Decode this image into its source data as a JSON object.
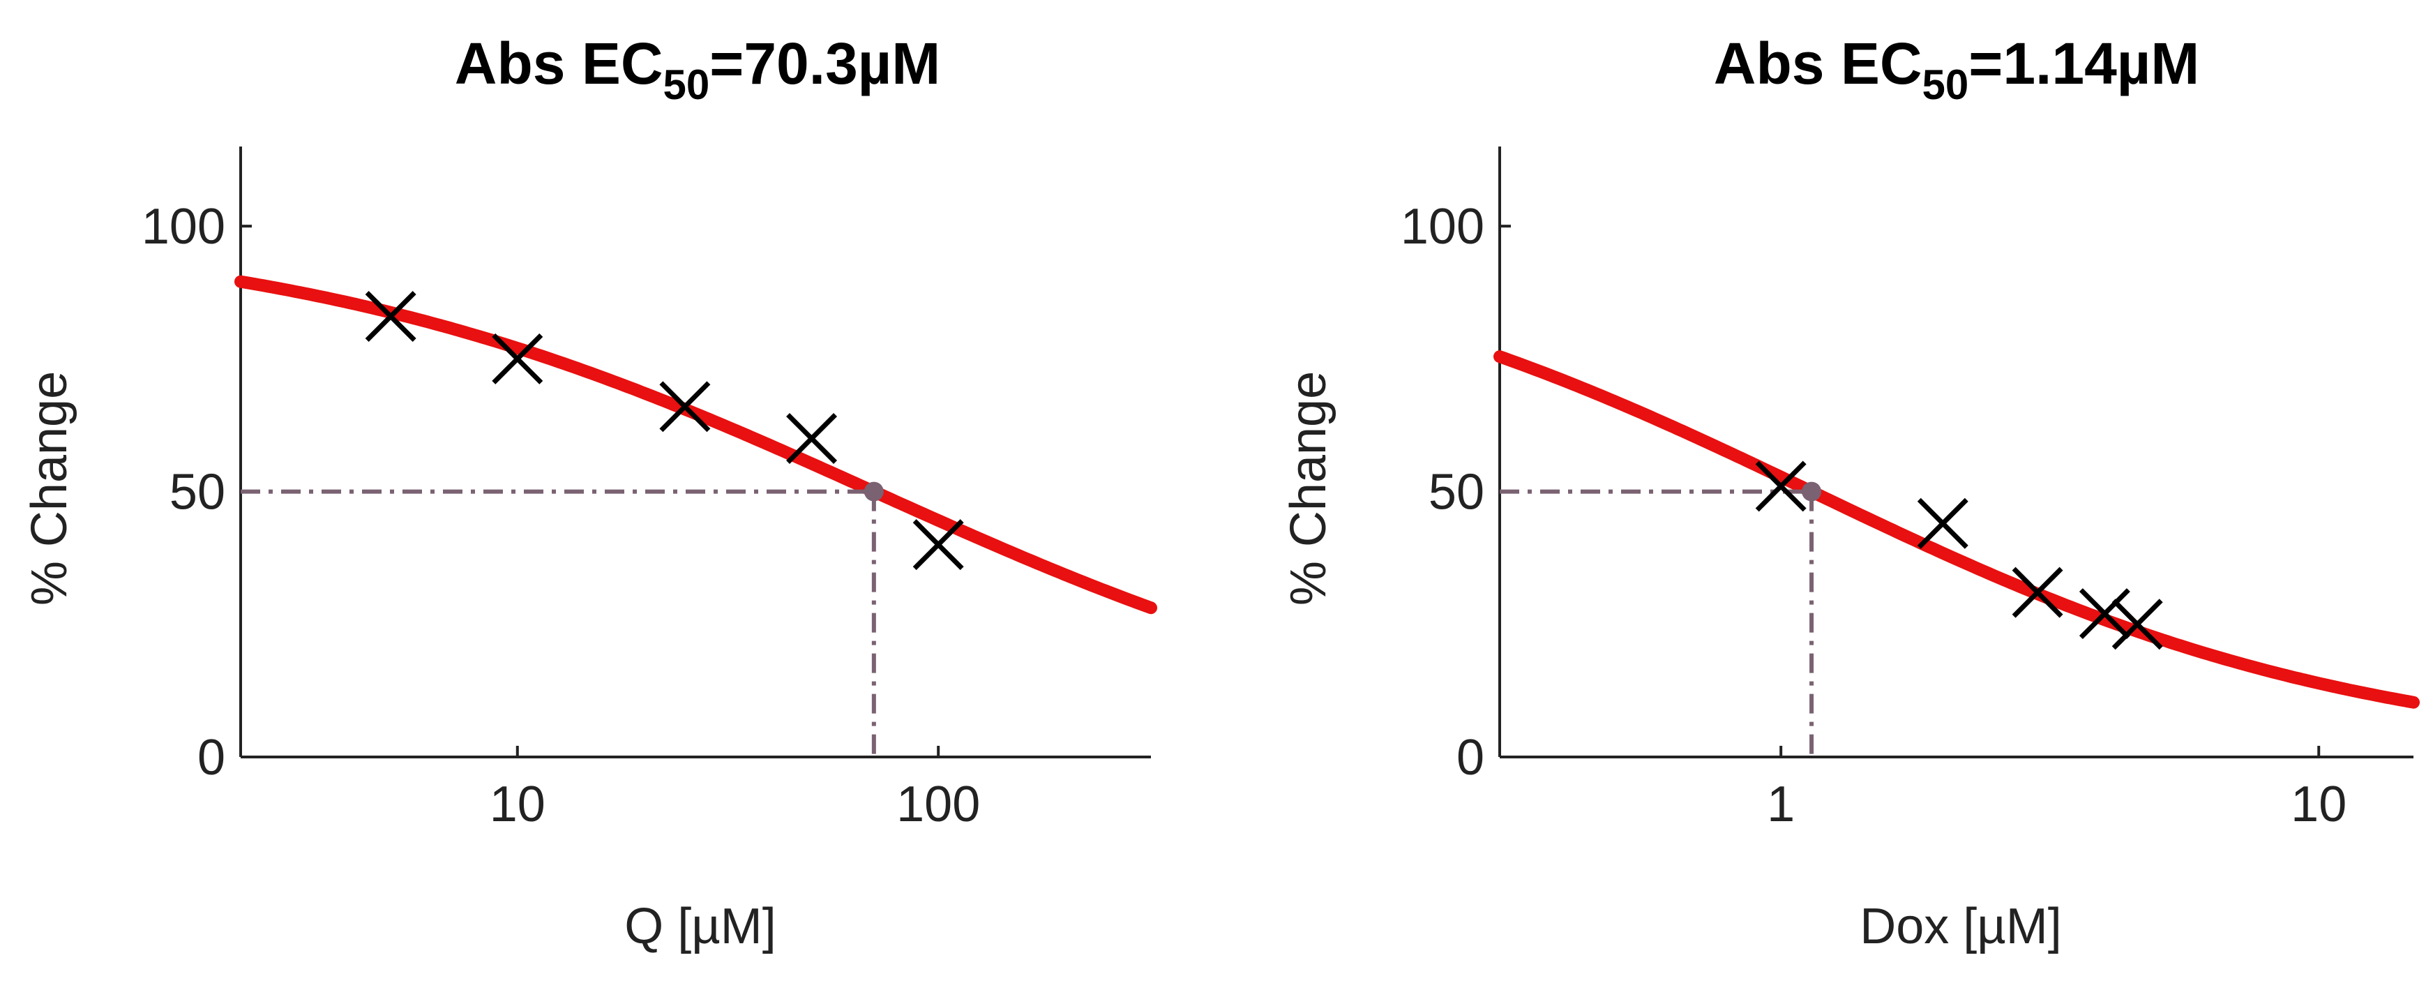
{
  "chart_data": [
    {
      "type": "scatter",
      "title": "Abs EC",
      "title_subscript": "50",
      "title_suffix": "=70.3µM",
      "xlabel": "Q [µM]",
      "ylabel": "% Change",
      "xscale": "log",
      "xlim": [
        2.2,
        320
      ],
      "ylim": [
        0,
        115
      ],
      "xticks": [
        10,
        100
      ],
      "xtick_labels": [
        "10",
        "100"
      ],
      "yticks": [
        0,
        50,
        100
      ],
      "ytick_labels": [
        "0",
        "50",
        "100"
      ],
      "grid": false,
      "legend": "none",
      "ec50": 70.3,
      "ec50_response": 50,
      "points": [
        {
          "x": 5,
          "y": 83
        },
        {
          "x": 10,
          "y": 75
        },
        {
          "x": 25,
          "y": 66
        },
        {
          "x": 50,
          "y": 60
        },
        {
          "x": 100,
          "y": 40
        }
      ],
      "fit_curve": {
        "top": 100,
        "bottom": 0,
        "ec50": 70.3,
        "hill": 0.62
      },
      "colors": {
        "fit": "#e81010",
        "guide": "#7a6272",
        "points": "#000000"
      }
    },
    {
      "type": "scatter",
      "title": "Abs EC",
      "title_subscript": "50",
      "title_suffix": "=1.14µM",
      "xlabel": "Dox [µM]",
      "ylabel": "% Change",
      "xscale": "log",
      "xlim": [
        0.3,
        15
      ],
      "ylim": [
        0,
        115
      ],
      "xticks": [
        1,
        10
      ],
      "xtick_labels": [
        "1",
        "10"
      ],
      "yticks": [
        0,
        50,
        100
      ],
      "ytick_labels": [
        "0",
        "50",
        "100"
      ],
      "grid": false,
      "legend": "none",
      "ec50": 1.14,
      "ec50_response": 50,
      "points": [
        {
          "x": 1,
          "y": 51
        },
        {
          "x": 2,
          "y": 44
        },
        {
          "x": 3,
          "y": 31
        },
        {
          "x": 4,
          "y": 27
        },
        {
          "x": 4.6,
          "y": 25
        }
      ],
      "fit_curve": {
        "top": 100,
        "bottom": 0,
        "ec50": 1.14,
        "hill": 0.84
      },
      "colors": {
        "fit": "#e81010",
        "guide": "#7a6272",
        "points": "#000000"
      }
    }
  ]
}
